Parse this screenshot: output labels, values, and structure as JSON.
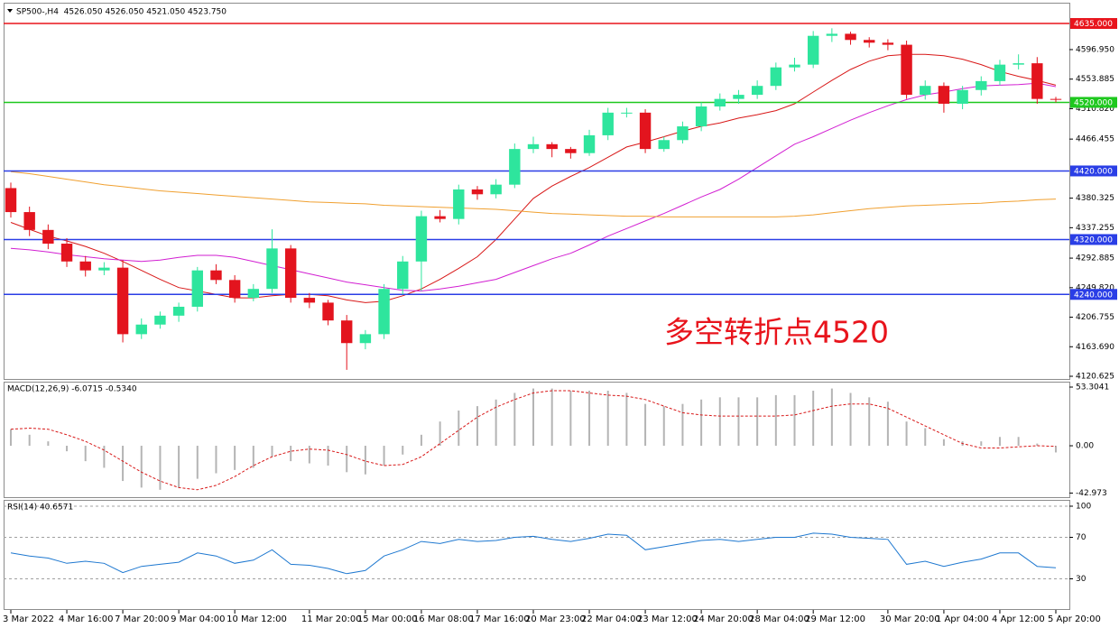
{
  "chart_data": [
    {
      "type": "candlestick",
      "title": "SP500-,H4  4526.050 4526.050 4521.050 4523.750",
      "categories": [
        "3 Mar 2022",
        null,
        null,
        "4 Mar 16:00",
        null,
        null,
        "7 Mar 20:00",
        null,
        null,
        "9 Mar 04:00",
        null,
        null,
        "10 Mar 12:00",
        null,
        null,
        null,
        "11 Mar 20:00",
        null,
        null,
        "15 Mar 00:00",
        null,
        null,
        "16 Mar 08:00",
        null,
        null,
        "17 Mar 16:00",
        null,
        null,
        "20 Mar 23:00",
        null,
        null,
        "22 Mar 04:00",
        null,
        null,
        "23 Mar 12:00",
        null,
        null,
        "24 Mar 20:00",
        null,
        null,
        "28 Mar 04:00",
        null,
        null,
        "29 Mar 12:00",
        null,
        null,
        null,
        "30 Mar 20:00",
        null,
        null,
        "1 Apr 04:00",
        null,
        null,
        "4 Apr 12:00",
        null,
        null,
        "5 Apr 20:00"
      ],
      "open": [
        4395,
        4360,
        4334,
        4314,
        4288,
        4275,
        4279,
        4182,
        4196,
        4209,
        4222,
        4275,
        4261,
        4235,
        4248,
        4307,
        4235,
        4228,
        4202,
        4169,
        4182,
        4248,
        4288,
        4354,
        4350,
        4393,
        4386,
        4400,
        4452,
        4459,
        4452,
        4446,
        4472,
        4505,
        4505,
        4452,
        4465,
        4485,
        4514,
        4525,
        4531,
        4544,
        4571,
        4575,
        4617,
        4620,
        4611,
        4607,
        4604,
        4531,
        4544,
        4518,
        4538,
        4551,
        4575,
        4577,
        4525
      ],
      "high": [
        4403,
        4368,
        4342,
        4322,
        4296,
        4287,
        4290,
        4205,
        4215,
        4228,
        4280,
        4284,
        4268,
        4255,
        4335,
        4312,
        4242,
        4232,
        4210,
        4188,
        4255,
        4296,
        4362,
        4363,
        4400,
        4398,
        4408,
        4460,
        4470,
        4462,
        4455,
        4480,
        4512,
        4512,
        4510,
        4470,
        4492,
        4520,
        4533,
        4538,
        4552,
        4578,
        4585,
        4624,
        4628,
        4623,
        4615,
        4612,
        4610,
        4552,
        4549,
        4544,
        4558,
        4582,
        4590,
        4586,
        4528
      ],
      "low": [
        4352,
        4325,
        4306,
        4280,
        4266,
        4268,
        4170,
        4175,
        4190,
        4200,
        4215,
        4255,
        4228,
        4230,
        4242,
        4228,
        4220,
        4195,
        4130,
        4160,
        4175,
        4240,
        4245,
        4345,
        4342,
        4378,
        4380,
        4395,
        4446,
        4440,
        4438,
        4442,
        4465,
        4498,
        4446,
        4448,
        4460,
        4478,
        4508,
        4518,
        4525,
        4538,
        4565,
        4570,
        4608,
        4604,
        4600,
        4596,
        4525,
        4524,
        4505,
        4510,
        4530,
        4545,
        4568,
        4518,
        4520
      ],
      "close": [
        4360,
        4334,
        4314,
        4288,
        4275,
        4279,
        4182,
        4196,
        4209,
        4222,
        4275,
        4261,
        4235,
        4248,
        4307,
        4235,
        4228,
        4202,
        4169,
        4182,
        4248,
        4288,
        4354,
        4350,
        4393,
        4386,
        4400,
        4452,
        4459,
        4452,
        4446,
        4472,
        4505,
        4505,
        4452,
        4465,
        4485,
        4514,
        4525,
        4531,
        4544,
        4571,
        4575,
        4617,
        4620,
        4611,
        4607,
        4604,
        4531,
        4544,
        4518,
        4538,
        4551,
        4575,
        4577,
        4525,
        4523.75
      ],
      "up_color": "#2ee59d",
      "down_color": "#e3141e",
      "moving_averages": [
        {
          "color": "#d81818",
          "values": [
            4345,
            4335,
            4325,
            4318,
            4310,
            4300,
            4288,
            4275,
            4262,
            4250,
            4245,
            4240,
            4235,
            4235,
            4238,
            4240,
            4240,
            4238,
            4232,
            4228,
            4230,
            4238,
            4248,
            4262,
            4278,
            4295,
            4320,
            4350,
            4380,
            4398,
            4412,
            4425,
            4440,
            4455,
            4462,
            4470,
            4478,
            4485,
            4490,
            4497,
            4502,
            4508,
            4518,
            4535,
            4552,
            4568,
            4580,
            4588,
            4590,
            4590,
            4588,
            4583,
            4575,
            4565,
            4558,
            4552,
            4545
          ]
        },
        {
          "color": "#d21fd2",
          "values": [
            4307,
            4305,
            4302,
            4298,
            4295,
            4292,
            4290,
            4288,
            4290,
            4294,
            4297,
            4297,
            4294,
            4288,
            4282,
            4276,
            4270,
            4264,
            4258,
            4254,
            4250,
            4246,
            4245,
            4248,
            4252,
            4257,
            4262,
            4272,
            4282,
            4292,
            4300,
            4312,
            4325,
            4336,
            4347,
            4358,
            4370,
            4382,
            4393,
            4408,
            4425,
            4442,
            4459,
            4470,
            4482,
            4494,
            4505,
            4515,
            4524,
            4531,
            4535,
            4540,
            4544,
            4545,
            4546,
            4548,
            4543
          ]
        },
        {
          "color": "#f0a030",
          "values": [
            4419,
            4416,
            4412,
            4408,
            4404,
            4400,
            4397,
            4394,
            4391,
            4389,
            4387,
            4385,
            4383,
            4381,
            4379,
            4377,
            4375,
            4374,
            4373,
            4372,
            4370,
            4369,
            4368,
            4367,
            4366,
            4365,
            4364,
            4362,
            4360,
            4358,
            4357,
            4356,
            4355,
            4354,
            4354,
            4353,
            4353,
            4353,
            4353,
            4353,
            4353,
            4353,
            4354,
            4356,
            4359,
            4362,
            4365,
            4367,
            4369,
            4370,
            4371,
            4372,
            4373,
            4375,
            4376,
            4378,
            4379
          ]
        }
      ],
      "hlines": [
        {
          "value": 4635,
          "label": "4635.000",
          "color": "#e8141c"
        },
        {
          "value": 4520,
          "label": "4520.000",
          "color": "#1ec81e"
        },
        {
          "value": 4420,
          "label": "4420.000",
          "color": "#2a3ee6"
        },
        {
          "value": 4320,
          "label": "4320.000",
          "color": "#2a3ee6"
        },
        {
          "value": 4240,
          "label": "4240.000",
          "color": "#2a3ee6"
        }
      ],
      "annotation": "多空转折点4520",
      "annotation_color": "#e8141c",
      "ylim": [
        4116.7,
        4665.3
      ],
      "yticks": [
        {
          "value": 4596.95,
          "label": "4596.950"
        },
        {
          "value": 4553.885,
          "label": "4553.885"
        },
        {
          "value": 4510.82,
          "label": "4510.820"
        },
        {
          "value": 4466.455,
          "label": "4466.455"
        },
        4380.325,
        4337.255,
        4292.885,
        {
          "value": 4249.82,
          "label": "4249.820"
        },
        4206.755,
        {
          "value": 4163.69,
          "label": "4163.690"
        },
        4120.625
      ],
      "grid": false
    },
    {
      "type": "macd",
      "title": "MACD(12,26,9) -6.0715 -0.5340",
      "histogram": {
        "color": "#b4b4b4",
        "values": [
          15,
          10,
          4,
          -5,
          -14,
          -20,
          -32,
          -38,
          -40,
          -38,
          -30,
          -25,
          -22,
          -20,
          -10,
          -14,
          -16,
          -18,
          -24,
          -26,
          -18,
          -8,
          10,
          22,
          32,
          36,
          42,
          48,
          52,
          52,
          50,
          50,
          50,
          48,
          38,
          36,
          38,
          42,
          44,
          44,
          44,
          46,
          46,
          50,
          52,
          48,
          44,
          40,
          22,
          16,
          6,
          4,
          4,
          8,
          8,
          2,
          -6.0715
        ]
      },
      "signal": {
        "color": "#d81818",
        "values": [
          15,
          16,
          15,
          10,
          4,
          -4,
          -14,
          -24,
          -32,
          -38,
          -40,
          -36,
          -28,
          -18,
          -10,
          -5,
          -3,
          -4,
          -8,
          -14,
          -18,
          -17,
          -10,
          2,
          14,
          26,
          35,
          42,
          48,
          50,
          50,
          48,
          46,
          45,
          42,
          36,
          30,
          28,
          27,
          27,
          27,
          27,
          28,
          32,
          36,
          38,
          38,
          34,
          26,
          18,
          10,
          2,
          -2,
          -2,
          -1,
          0,
          -0.534
        ]
      },
      "ylim": [
        -46.7,
        57.4
      ],
      "yticks": [
        53.3041,
        {
          "value": 0,
          "label": "0.00"
        },
        -42.973
      ],
      "grid": false
    },
    {
      "type": "line",
      "title": "RSI(14) 40.6571",
      "color": "#1e78d0",
      "values": [
        55,
        52,
        50,
        45,
        47,
        45,
        36,
        42,
        44,
        46,
        55,
        52,
        45,
        48,
        58,
        44,
        43,
        40,
        35,
        38,
        52,
        58,
        66,
        64,
        68,
        66,
        67,
        70,
        71,
        68,
        66,
        69,
        73,
        72,
        58,
        61,
        64,
        67,
        68,
        66,
        68,
        70,
        70,
        74,
        73,
        70,
        69,
        68,
        44,
        47,
        42,
        46,
        49,
        55,
        55,
        42,
        40.6571
      ],
      "ylim": [
        0,
        100
      ],
      "yticks": [
        100,
        70,
        30
      ],
      "grid": true
    }
  ]
}
